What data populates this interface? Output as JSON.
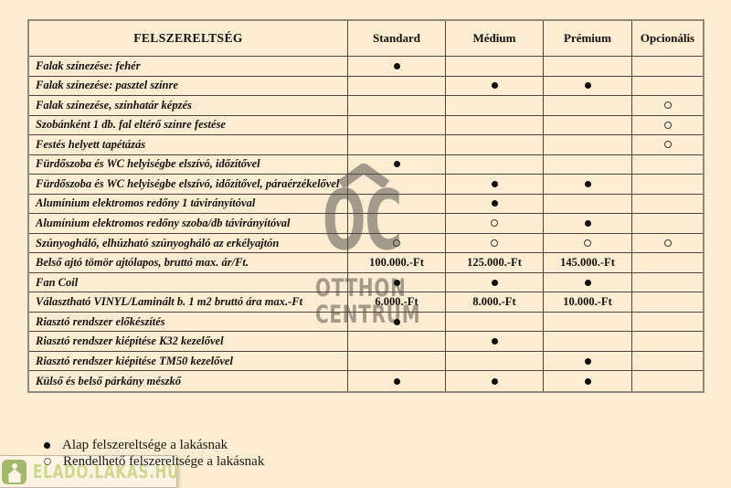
{
  "table": {
    "header": {
      "feature_col": "FELSZERELTSÉG",
      "tiers": [
        "Standard",
        "Médium",
        "Prémium",
        "Opcionális"
      ]
    },
    "rows": [
      {
        "label": "Falak színezése: fehér",
        "cells": [
          "filled",
          "",
          "",
          ""
        ]
      },
      {
        "label": "Falak színezése: pasztel színre",
        "cells": [
          "",
          "filled",
          "filled",
          ""
        ]
      },
      {
        "label": "Falak színezése, színhatár képzés",
        "cells": [
          "",
          "",
          "",
          "hollow"
        ]
      },
      {
        "label": "Szobánként 1 db. fal eltérő színre festése",
        "cells": [
          "",
          "",
          "",
          "hollow"
        ]
      },
      {
        "label": "Festés helyett tapétázás",
        "cells": [
          "",
          "",
          "",
          "hollow"
        ]
      },
      {
        "label": "Fürdőszoba és WC helyiségbe elszívó, időzítővel",
        "cells": [
          "filled",
          "",
          "",
          ""
        ]
      },
      {
        "label": "Fürdőszoba és WC helyiségbe elszívó, időzítővel, páraérzékelővel",
        "cells": [
          "",
          "filled",
          "filled",
          ""
        ]
      },
      {
        "label": "Alumínium elektromos redőny 1 távirányítóval",
        "cells": [
          "",
          "filled",
          "",
          ""
        ]
      },
      {
        "label": "Alumínium elektromos redőny szoba/db távirányítóval",
        "cells": [
          "",
          "hollow",
          "filled",
          ""
        ]
      },
      {
        "label": "Szúnyogháló, elhúzható szúnyogháló az erkélyajtón",
        "cells": [
          "hollow",
          "hollow",
          "hollow",
          "hollow"
        ]
      },
      {
        "label": "Belső ajtó tömör ajtólapos, bruttó max. ár/Ft.",
        "cells": [
          "100.000.-Ft",
          "125.000.-Ft",
          "145.000.-Ft",
          ""
        ]
      },
      {
        "label": "Fan Coil",
        "cells": [
          "filled",
          "filled",
          "filled",
          ""
        ]
      },
      {
        "label": "Választható VINYL/Laminált b. 1 m2 bruttó ára max.-Ft",
        "cells": [
          "6.000.-Ft",
          "8.000.-Ft",
          "10.000.-Ft",
          ""
        ]
      },
      {
        "label": "Riasztó rendszer előkészítés",
        "cells": [
          "filled",
          "",
          "",
          ""
        ]
      },
      {
        "label": "Riasztó rendszer kiépítése K32 kezelővel",
        "cells": [
          "",
          "filled",
          "",
          ""
        ]
      },
      {
        "label": "Riasztó rendszer kiépítése TM50 kezelővel",
        "cells": [
          "",
          "",
          "filled",
          ""
        ]
      },
      {
        "label": "Külső és belső párkány mészkő",
        "cells": [
          "filled",
          "filled",
          "filled",
          ""
        ]
      }
    ]
  },
  "legend": {
    "items": [
      {
        "symbol": "filled",
        "text": "Alap felszereltsége a lakásnak"
      },
      {
        "symbol": "hollow",
        "text": "Rendelhető felszereltsége a lakásnak"
      }
    ]
  },
  "watermarks": {
    "center": {
      "monogram": "OC",
      "line1": "OTTHON",
      "line2": "CENTRUM"
    },
    "bottom_left": "ELADO.LAKAS.HU"
  },
  "colors": {
    "page_background": "#fbecd2",
    "table_line": "#4c463e",
    "watermark_gray": "#a49a8b",
    "watermark_green_text": "#cbd88e",
    "watermark_green_badge": "#9eb464"
  }
}
